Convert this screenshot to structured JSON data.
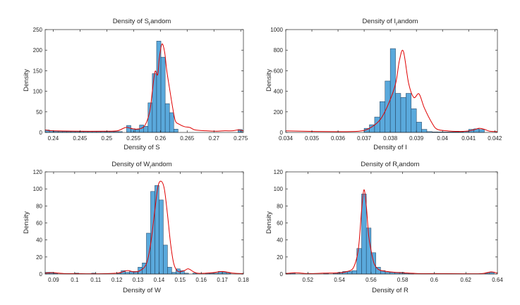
{
  "figure": {
    "background": "#ffffff",
    "bar_color": "#5aa9dc",
    "bar_edge": "#1f3a56",
    "curve_color": "#e00000",
    "axis_color": "#262626"
  },
  "chart_data": [
    {
      "type": "histogram",
      "title_main": "Density of S",
      "title_sub": "r",
      "title_tail": "andom",
      "xlabel": "Density of S",
      "ylabel": "Density",
      "xlim": [
        0.2385,
        0.2755
      ],
      "ylim": [
        0,
        250
      ],
      "xticks": [
        0.24,
        0.245,
        0.25,
        0.255,
        0.26,
        0.265,
        0.27,
        0.275
      ],
      "xtick_labels": [
        "0.24",
        "0.245",
        "0.25",
        "0.255",
        "0.26",
        "0.265",
        "0.27",
        "0.275"
      ],
      "yticks": [
        0,
        50,
        100,
        150,
        200,
        250
      ],
      "ytick_labels": [
        "0",
        "50",
        "100",
        "150",
        "200",
        "250"
      ],
      "bin_edges": [
        0.2385,
        0.2393,
        0.2401,
        0.2409,
        0.2417,
        0.2425,
        0.2433,
        0.2441,
        0.2449,
        0.2457,
        0.2465,
        0.2473,
        0.2481,
        0.2489,
        0.2497,
        0.2505,
        0.2513,
        0.2521,
        0.2529,
        0.2537,
        0.2545,
        0.2553,
        0.2561,
        0.2569,
        0.2577,
        0.2585,
        0.2593,
        0.2601,
        0.2609,
        0.2617,
        0.2625,
        0.2633,
        0.2641,
        0.2649,
        0.2657,
        0.2665,
        0.2673,
        0.2681,
        0.2689,
        0.2697,
        0.2705,
        0.2713,
        0.2721,
        0.2729,
        0.2737,
        0.2745,
        0.2753
      ],
      "counts": [
        6,
        4,
        3,
        2,
        2,
        2,
        2,
        2,
        2,
        2,
        2,
        2,
        2,
        2,
        2,
        2,
        2,
        2,
        0,
        17,
        9,
        7,
        18,
        15,
        72,
        143,
        222,
        183,
        70,
        48,
        8,
        0,
        0,
        0,
        0,
        0,
        0,
        0,
        0,
        0,
        0,
        0,
        0,
        0,
        0,
        7
      ],
      "curve_x": [
        0.2385,
        0.24,
        0.245,
        0.25,
        0.252,
        0.2535,
        0.2545,
        0.2555,
        0.257,
        0.258,
        0.2585,
        0.259,
        0.2595,
        0.2598,
        0.2603,
        0.2608,
        0.2612,
        0.2618,
        0.2623,
        0.2628,
        0.2635,
        0.2645,
        0.2655,
        0.2665,
        0.2685,
        0.2705,
        0.272,
        0.2735,
        0.2745,
        0.2755
      ],
      "curve_y": [
        6,
        4,
        3,
        3,
        4,
        12,
        10,
        8,
        15,
        50,
        100,
        148,
        140,
        180,
        215,
        195,
        150,
        100,
        60,
        28,
        20,
        14,
        12,
        6,
        4,
        3,
        4,
        4,
        6,
        4
      ]
    },
    {
      "type": "histogram",
      "title_main": "Density of I",
      "title_sub": "r",
      "title_tail": "andom",
      "xlabel": "Density of I",
      "ylabel": "Density",
      "xlim": [
        0.034,
        0.0421
      ],
      "ylim": [
        0,
        1000
      ],
      "xticks": [
        0.034,
        0.035,
        0.036,
        0.037,
        0.038,
        0.039,
        0.04,
        0.041,
        0.042
      ],
      "xtick_labels": [
        "0.034",
        "0.035",
        "0.036",
        "0.037",
        "0.038",
        "0.039",
        "0.04",
        "0.041",
        "0.042"
      ],
      "yticks": [
        0,
        200,
        400,
        600,
        800,
        1000
      ],
      "ytick_labels": [
        "0",
        "200",
        "400",
        "600",
        "800",
        "1000"
      ],
      "bin_edges": [
        0.037,
        0.0372,
        0.0374,
        0.0376,
        0.0378,
        0.038,
        0.0382,
        0.0384,
        0.0386,
        0.0388,
        0.039,
        0.0392,
        0.0394,
        0.0396,
        0.0398,
        0.04,
        0.0402,
        0.0404,
        0.0406,
        0.0408,
        0.041,
        0.0412,
        0.0414,
        0.0416
      ],
      "counts": [
        40,
        75,
        150,
        300,
        500,
        815,
        380,
        340,
        380,
        230,
        100,
        30,
        8,
        5,
        5,
        5,
        5,
        5,
        5,
        10,
        30,
        35,
        28
      ],
      "curve_x": [
        0.034,
        0.035,
        0.036,
        0.0368,
        0.0372,
        0.0376,
        0.0379,
        0.0382,
        0.03835,
        0.0385,
        0.0387,
        0.0389,
        0.0391,
        0.0393,
        0.0396,
        0.0398,
        0.0402,
        0.0406,
        0.0409,
        0.0412,
        0.0414,
        0.0416,
        0.0418,
        0.0421
      ],
      "curve_y": [
        15,
        10,
        8,
        12,
        40,
        120,
        260,
        470,
        700,
        790,
        480,
        340,
        375,
        240,
        90,
        30,
        15,
        10,
        12,
        25,
        40,
        30,
        12,
        8
      ]
    },
    {
      "type": "histogram",
      "title_main": "Density of W",
      "title_sub": "r",
      "title_tail": "andom",
      "xlabel": "Density of W",
      "ylabel": "Density",
      "xlim": [
        0.086,
        0.18
      ],
      "ylim": [
        0,
        120
      ],
      "xticks": [
        0.09,
        0.1,
        0.11,
        0.12,
        0.13,
        0.14,
        0.15,
        0.16,
        0.17,
        0.18
      ],
      "xtick_labels": [
        "0.09",
        "0.1",
        "0.11",
        "0.12",
        "0.13",
        "0.14",
        "0.15",
        "0.16",
        "0.17",
        "0.18"
      ],
      "yticks": [
        0,
        20,
        40,
        60,
        80,
        100,
        120
      ],
      "ytick_labels": [
        "0",
        "20",
        "40",
        "60",
        "80",
        "100",
        "120"
      ],
      "bin_edges": [
        0.086,
        0.088,
        0.09,
        0.092,
        0.094,
        0.096,
        0.098,
        0.1,
        0.102,
        0.104,
        0.106,
        0.108,
        0.11,
        0.112,
        0.114,
        0.116,
        0.118,
        0.12,
        0.122,
        0.124,
        0.126,
        0.128,
        0.13,
        0.132,
        0.134,
        0.136,
        0.138,
        0.14,
        0.142,
        0.144,
        0.146,
        0.148,
        0.15,
        0.152,
        0.154,
        0.156,
        0.158,
        0.16,
        0.162,
        0.164,
        0.166,
        0.168,
        0.17,
        0.172,
        0.174,
        0.176,
        0.178
      ],
      "counts": [
        2,
        2,
        1,
        0,
        0,
        0,
        0,
        1,
        0,
        0,
        0,
        1,
        0,
        0,
        0,
        0,
        0,
        1,
        4,
        2,
        3,
        3,
        8,
        13,
        48,
        97,
        104,
        87,
        34,
        8,
        2,
        6,
        4,
        1,
        0,
        1,
        0,
        0,
        1,
        1,
        1,
        3,
        2,
        1,
        0,
        0
      ],
      "curve_x": [
        0.086,
        0.09,
        0.095,
        0.1,
        0.11,
        0.12,
        0.125,
        0.128,
        0.131,
        0.134,
        0.136,
        0.138,
        0.1395,
        0.141,
        0.1425,
        0.144,
        0.1455,
        0.147,
        0.149,
        0.152,
        0.154,
        0.158,
        0.165,
        0.17,
        0.175,
        0.18
      ],
      "curve_y": [
        1,
        1.5,
        0.5,
        0.5,
        0.3,
        1,
        4,
        2.5,
        4,
        12,
        35,
        75,
        103,
        109,
        100,
        70,
        35,
        12,
        3,
        4,
        6,
        1,
        1.5,
        3,
        1,
        0.5
      ]
    },
    {
      "type": "histogram",
      "title_main": "Density of R",
      "title_sub": "r",
      "title_tail": "andom",
      "xlabel": "Density of R",
      "ylabel": "Density",
      "xlim": [
        0.506,
        0.64
      ],
      "ylim": [
        0,
        120
      ],
      "xticks": [
        0.52,
        0.54,
        0.56,
        0.58,
        0.6,
        0.62,
        0.64
      ],
      "xtick_labels": [
        "0.52",
        "0.54",
        "0.56",
        "0.58",
        "0.6",
        "0.62",
        "0.64"
      ],
      "yticks": [
        0,
        20,
        40,
        60,
        80,
        100,
        120
      ],
      "ytick_labels": [
        "0",
        "20",
        "40",
        "60",
        "80",
        "100",
        "120"
      ],
      "bin_edges": [
        0.506,
        0.509,
        0.512,
        0.515,
        0.518,
        0.521,
        0.524,
        0.527,
        0.53,
        0.533,
        0.536,
        0.539,
        0.542,
        0.545,
        0.548,
        0.551,
        0.554,
        0.557,
        0.56,
        0.563,
        0.566,
        0.569,
        0.572,
        0.575,
        0.578,
        0.581,
        0.584,
        0.587,
        0.59,
        0.593,
        0.596,
        0.599,
        0.602,
        0.605,
        0.608,
        0.611,
        0.614,
        0.617,
        0.62,
        0.623,
        0.626,
        0.629,
        0.632,
        0.635,
        0.638
      ],
      "counts": [
        1,
        1,
        0,
        0,
        0,
        0,
        0,
        0,
        1,
        0,
        1,
        2,
        3,
        3,
        4,
        30,
        94,
        54,
        25,
        8,
        4,
        2,
        2,
        2,
        2,
        1,
        1,
        0,
        0,
        0,
        0,
        0,
        0,
        0,
        0,
        0,
        0,
        0,
        0,
        0,
        0,
        0,
        1,
        2
      ],
      "curve_x": [
        0.506,
        0.512,
        0.52,
        0.53,
        0.54,
        0.545,
        0.549,
        0.552,
        0.554,
        0.5555,
        0.557,
        0.5585,
        0.56,
        0.562,
        0.565,
        0.57,
        0.575,
        0.58,
        0.59,
        0.6,
        0.62,
        0.63,
        0.636,
        0.64
      ],
      "curve_y": [
        0.5,
        1.5,
        0.5,
        1,
        1.5,
        3,
        8,
        30,
        75,
        99,
        80,
        45,
        28,
        12,
        5,
        3,
        2,
        1.5,
        0.5,
        0.5,
        0.3,
        0.5,
        2.5,
        1
      ]
    }
  ]
}
